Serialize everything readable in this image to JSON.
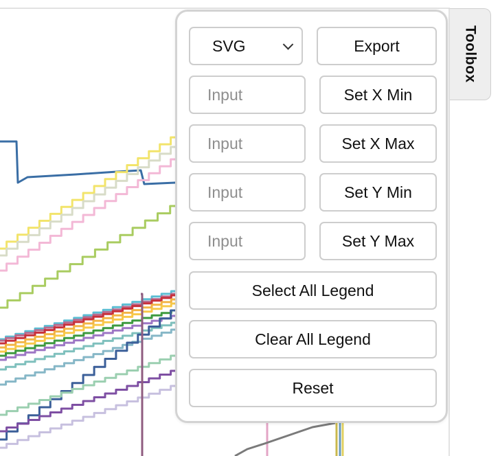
{
  "toolbox": {
    "tab_label": "Toolbox",
    "format_select": {
      "value": "SVG"
    },
    "export_label": "Export",
    "axis_inputs": [
      {
        "placeholder": "Input",
        "button_label": "Set X Min"
      },
      {
        "placeholder": "Input",
        "button_label": "Set X Max"
      },
      {
        "placeholder": "Input",
        "button_label": "Set Y Min"
      },
      {
        "placeholder": "Input",
        "button_label": "Set Y Max"
      }
    ],
    "select_all_label": "Select All Legend",
    "clear_all_label": "Clear All Legend",
    "reset_label": "Reset"
  },
  "colors": {
    "panel_border": "#d3d3d3",
    "control_border": "#cdcdcd",
    "placeholder_text": "#8e8e8e",
    "tab_background": "#eeeeee"
  }
}
